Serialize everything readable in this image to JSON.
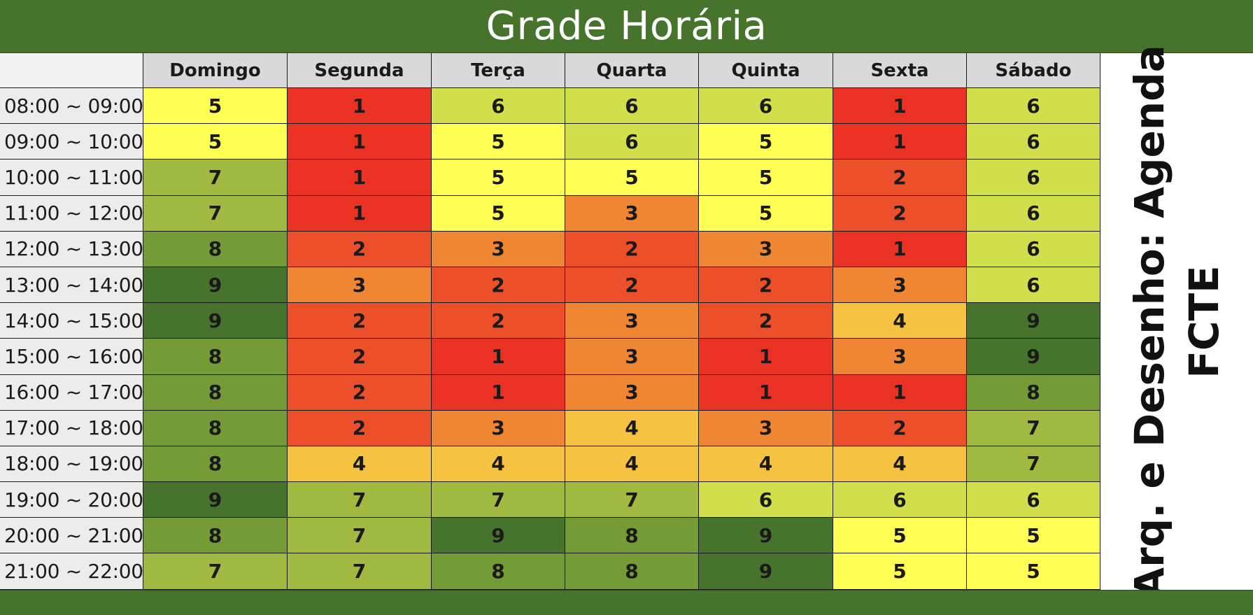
{
  "title": "Grade Horária",
  "side_label": {
    "line1": "Arq. e Desenho: Agenda",
    "line2": "FCTE"
  },
  "days": [
    "Domingo",
    "Segunda",
    "Terça",
    "Quarta",
    "Quinta",
    "Sexta",
    "Sábado"
  ],
  "times": [
    "08:00 ~ 09:00",
    "09:00 ~ 10:00",
    "10:00 ~ 11:00",
    "11:00 ~ 12:00",
    "12:00 ~ 13:00",
    "13:00 ~ 14:00",
    "14:00 ~ 15:00",
    "15:00 ~ 16:00",
    "16:00 ~ 17:00",
    "17:00 ~ 18:00",
    "18:00 ~ 19:00",
    "19:00 ~ 20:00",
    "20:00 ~ 21:00",
    "21:00 ~ 22:00"
  ],
  "values": [
    [
      5,
      1,
      6,
      6,
      6,
      1,
      6
    ],
    [
      5,
      1,
      5,
      6,
      5,
      1,
      6
    ],
    [
      7,
      1,
      5,
      5,
      5,
      2,
      6
    ],
    [
      7,
      1,
      5,
      3,
      5,
      2,
      6
    ],
    [
      8,
      2,
      3,
      2,
      3,
      1,
      6
    ],
    [
      9,
      3,
      2,
      2,
      2,
      3,
      6
    ],
    [
      9,
      2,
      2,
      3,
      2,
      4,
      9
    ],
    [
      8,
      2,
      1,
      3,
      1,
      3,
      9
    ],
    [
      8,
      2,
      1,
      3,
      1,
      1,
      8
    ],
    [
      8,
      2,
      3,
      4,
      3,
      2,
      7
    ],
    [
      8,
      4,
      4,
      4,
      4,
      4,
      7
    ],
    [
      9,
      7,
      7,
      7,
      6,
      6,
      6
    ],
    [
      8,
      7,
      9,
      8,
      9,
      5,
      5
    ],
    [
      7,
      7,
      8,
      8,
      9,
      5,
      5
    ]
  ],
  "colors": {
    "header_green": "#47742d",
    "scale": {
      "1": "#e93223",
      "2": "#eb502a",
      "3": "#ef8633",
      "4": "#f6c242",
      "5": "#ffff54",
      "6": "#d0df4b",
      "7": "#a0ba41",
      "8": "#759b36",
      "9": "#47742d"
    }
  }
}
